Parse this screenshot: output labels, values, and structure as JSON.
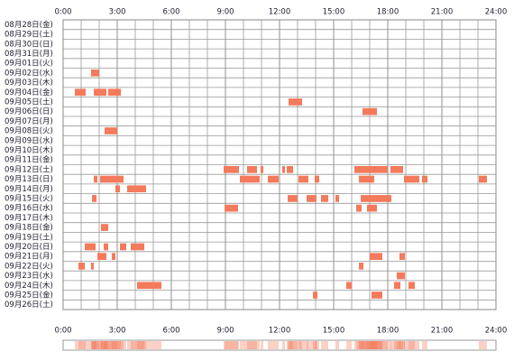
{
  "chart_data": {
    "type": "timeline",
    "color": "#f47a5c",
    "grid": true,
    "xlim": [
      0,
      24
    ],
    "xticks": [
      {
        "value": 0,
        "label": "0:00"
      },
      {
        "value": 3,
        "label": "3:00"
      },
      {
        "value": 6,
        "label": "6:00"
      },
      {
        "value": 9,
        "label": "9:00"
      },
      {
        "value": 12,
        "label": "12:00"
      },
      {
        "value": 15,
        "label": "15:00"
      },
      {
        "value": 18,
        "label": "18:00"
      },
      {
        "value": 21,
        "label": "21:00"
      },
      {
        "value": 24,
        "label": "24:00"
      }
    ],
    "rows": [
      {
        "label": "08月28日(金)",
        "intervals": []
      },
      {
        "label": "08月29日(土)",
        "intervals": []
      },
      {
        "label": "08月30日(日)",
        "intervals": []
      },
      {
        "label": "08月31日(月)",
        "intervals": []
      },
      {
        "label": "09月01日(火)",
        "intervals": []
      },
      {
        "label": "09月02日(水)",
        "intervals": [
          [
            1.55,
            2.0
          ]
        ]
      },
      {
        "label": "09月03日(木)",
        "intervals": []
      },
      {
        "label": "09月04日(金)",
        "intervals": [
          [
            0.65,
            1.25
          ],
          [
            1.7,
            2.4
          ],
          [
            2.5,
            3.2
          ]
        ]
      },
      {
        "label": "09月05日(土)",
        "intervals": [
          [
            12.5,
            13.25
          ]
        ]
      },
      {
        "label": "09月06日(日)",
        "intervals": [
          [
            16.6,
            17.4
          ]
        ]
      },
      {
        "label": "09月07日(月)",
        "intervals": []
      },
      {
        "label": "09月08日(火)",
        "intervals": [
          [
            2.3,
            3.0
          ]
        ]
      },
      {
        "label": "09月09日(水)",
        "intervals": []
      },
      {
        "label": "09月10日(木)",
        "intervals": []
      },
      {
        "label": "09月11日(金)",
        "intervals": []
      },
      {
        "label": "09月12日(土)",
        "intervals": [
          [
            8.9,
            9.75
          ],
          [
            10.2,
            10.75
          ],
          [
            10.95,
            11.1
          ],
          [
            12.15,
            12.3
          ],
          [
            12.4,
            12.75
          ],
          [
            16.15,
            18.0
          ],
          [
            18.15,
            18.85
          ]
        ]
      },
      {
        "label": "09月13日(日)",
        "intervals": [
          [
            1.7,
            1.9
          ],
          [
            2.05,
            3.35
          ],
          [
            9.8,
            10.9
          ],
          [
            11.35,
            11.95
          ],
          [
            13.05,
            13.6
          ],
          [
            13.95,
            14.2
          ],
          [
            16.4,
            17.25
          ],
          [
            18.9,
            19.75
          ],
          [
            19.9,
            20.2
          ],
          [
            23.05,
            23.5
          ]
        ]
      },
      {
        "label": "09月14日(月)",
        "intervals": [
          [
            2.9,
            3.15
          ],
          [
            3.55,
            4.6
          ]
        ]
      },
      {
        "label": "09月15日(火)",
        "intervals": [
          [
            1.6,
            1.85
          ],
          [
            12.45,
            13.0
          ],
          [
            13.5,
            14.05
          ],
          [
            14.3,
            14.7
          ],
          [
            15.1,
            15.3
          ],
          [
            16.5,
            18.2
          ]
        ]
      },
      {
        "label": "09月16日(水)",
        "intervals": [
          [
            8.95,
            9.7
          ],
          [
            16.25,
            16.55
          ],
          [
            16.85,
            17.4
          ]
        ]
      },
      {
        "label": "09月17日(木)",
        "intervals": []
      },
      {
        "label": "09月18日(金)",
        "intervals": [
          [
            2.1,
            2.5
          ]
        ]
      },
      {
        "label": "09月19日(土)",
        "intervals": []
      },
      {
        "label": "09月20日(日)",
        "intervals": [
          [
            1.2,
            1.8
          ],
          [
            2.25,
            2.5
          ],
          [
            3.15,
            3.5
          ],
          [
            3.75,
            4.5
          ]
        ]
      },
      {
        "label": "09月21日(月)",
        "intervals": [
          [
            1.9,
            2.4
          ],
          [
            2.7,
            2.9
          ],
          [
            17.0,
            17.7
          ],
          [
            18.65,
            18.95
          ]
        ]
      },
      {
        "label": "09月22日(火)",
        "intervals": [
          [
            0.85,
            1.2
          ],
          [
            1.55,
            1.7
          ],
          [
            16.4,
            16.65
          ]
        ]
      },
      {
        "label": "09月23日(水)",
        "intervals": [
          [
            18.5,
            18.95
          ]
        ]
      },
      {
        "label": "09月24日(木)",
        "intervals": [
          [
            4.1,
            5.45
          ],
          [
            15.7,
            16.0
          ],
          [
            18.35,
            18.7
          ],
          [
            19.15,
            19.5
          ]
        ]
      },
      {
        "label": "09月25日(金)",
        "intervals": [
          [
            13.85,
            14.1
          ],
          [
            17.1,
            17.7
          ]
        ]
      },
      {
        "label": "09月26日(土)",
        "intervals": []
      }
    ]
  }
}
